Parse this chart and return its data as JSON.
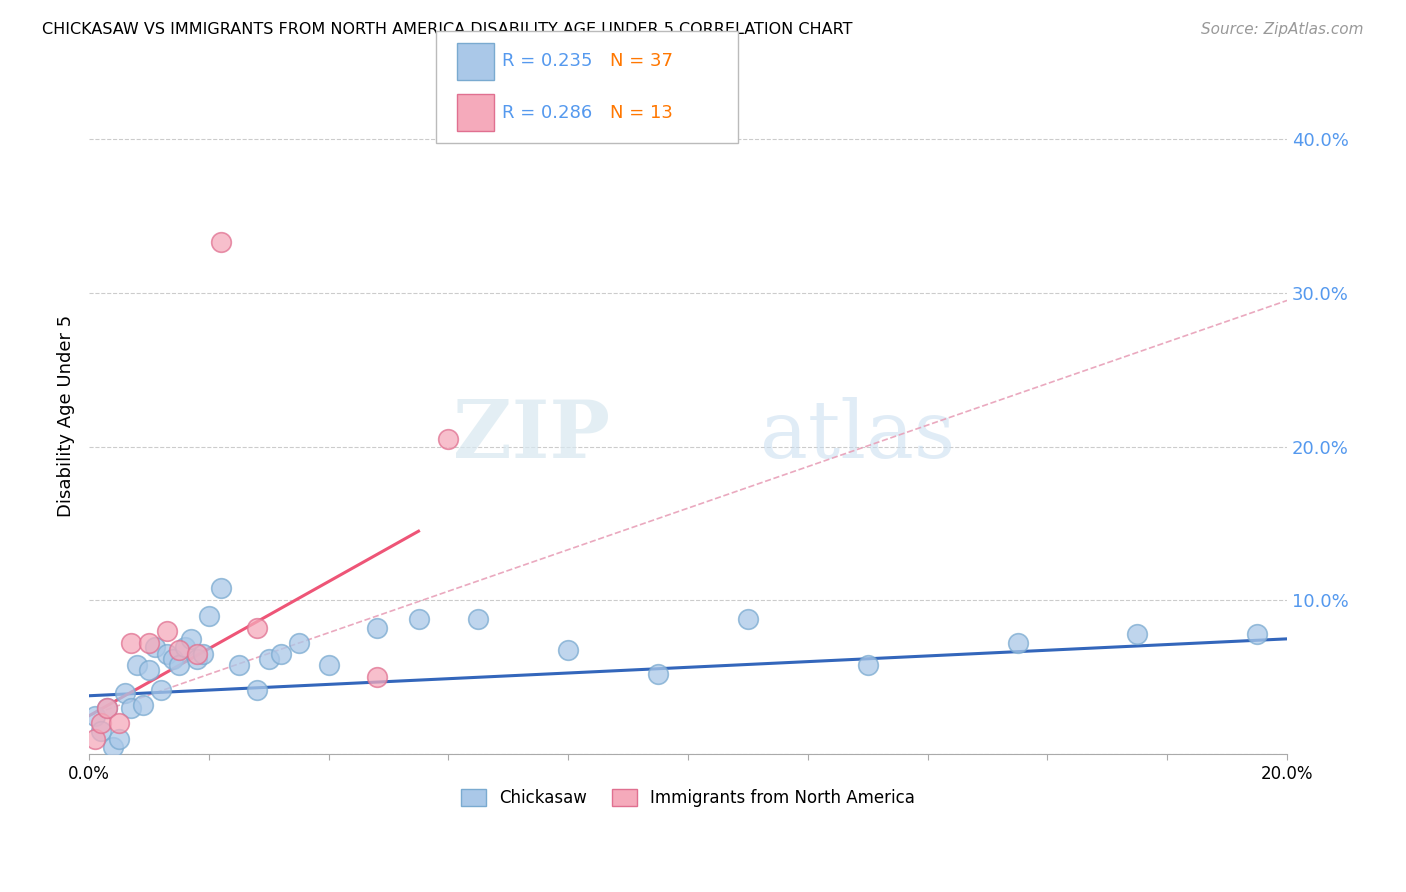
{
  "title": "CHICKASAW VS IMMIGRANTS FROM NORTH AMERICA DISABILITY AGE UNDER 5 CORRELATION CHART",
  "source": "Source: ZipAtlas.com",
  "ylabel": "Disability Age Under 5",
  "xlim": [
    0.0,
    0.2
  ],
  "ylim": [
    0.0,
    0.44
  ],
  "xticks": [
    0.0,
    0.02,
    0.04,
    0.06,
    0.08,
    0.1,
    0.12,
    0.14,
    0.16,
    0.18,
    0.2
  ],
  "yticks_right": [
    0.0,
    0.1,
    0.2,
    0.3,
    0.4
  ],
  "ytick_right_labels": [
    "",
    "10.0%",
    "20.0%",
    "30.0%",
    "40.0%"
  ],
  "grid_color": "#cccccc",
  "background_color": "#ffffff",
  "chickasaw_color": "#aac8e8",
  "immigrant_color": "#f5aabb",
  "chickasaw_edge_color": "#7aaad0",
  "immigrant_edge_color": "#e07090",
  "chickasaw_line_color": "#3366bb",
  "immigrant_line_color": "#ee5577",
  "dashed_line_color": "#e8a0b8",
  "legend_label1": "Chickasaw",
  "legend_label2": "Immigrants from North America",
  "watermark_zip": "ZIP",
  "watermark_atlas": "atlas",
  "chickasaw_x": [
    0.001,
    0.002,
    0.003,
    0.004,
    0.005,
    0.006,
    0.007,
    0.008,
    0.009,
    0.01,
    0.011,
    0.012,
    0.013,
    0.014,
    0.015,
    0.016,
    0.017,
    0.018,
    0.019,
    0.02,
    0.022,
    0.025,
    0.028,
    0.03,
    0.032,
    0.035,
    0.04,
    0.048,
    0.055,
    0.065,
    0.08,
    0.095,
    0.11,
    0.13,
    0.155,
    0.175,
    0.195
  ],
  "chickasaw_y": [
    0.025,
    0.015,
    0.03,
    0.005,
    0.01,
    0.04,
    0.03,
    0.058,
    0.032,
    0.055,
    0.07,
    0.042,
    0.065,
    0.062,
    0.058,
    0.07,
    0.075,
    0.062,
    0.065,
    0.09,
    0.108,
    0.058,
    0.042,
    0.062,
    0.065,
    0.072,
    0.058,
    0.082,
    0.088,
    0.088,
    0.068,
    0.052,
    0.088,
    0.058,
    0.072,
    0.078,
    0.078
  ],
  "immigrant_x": [
    0.001,
    0.002,
    0.003,
    0.005,
    0.007,
    0.01,
    0.013,
    0.015,
    0.018,
    0.022,
    0.028,
    0.048,
    0.06
  ],
  "immigrant_y": [
    0.01,
    0.02,
    0.03,
    0.02,
    0.072,
    0.072,
    0.08,
    0.068,
    0.065,
    0.333,
    0.082,
    0.05,
    0.205
  ],
  "chickasaw_line_x": [
    0.0,
    0.2
  ],
  "chickasaw_line_y": [
    0.038,
    0.075
  ],
  "immigrant_line_x": [
    0.0,
    0.055
  ],
  "immigrant_line_y": [
    0.025,
    0.145
  ],
  "dashed_line_x": [
    0.0,
    0.2
  ],
  "dashed_line_y": [
    0.025,
    0.295
  ]
}
